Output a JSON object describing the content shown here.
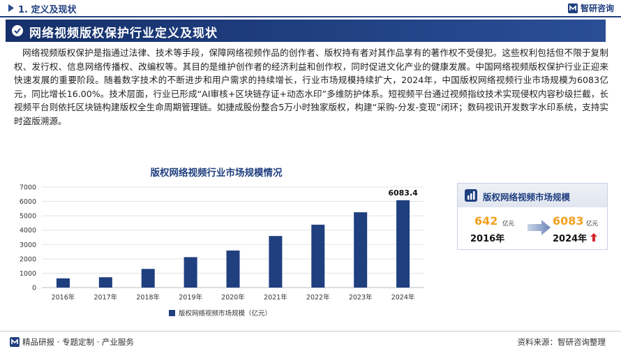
{
  "header": {
    "section_title": "1. 定义及现状",
    "brand": "智研咨询"
  },
  "banner": {
    "title": "网络视频版权保护行业定义及现状"
  },
  "body_text": "网络视频版权保护是指通过法律、技术等手段，保障网络视频作品的创作者、版权持有者对其作品享有的著作权不受侵犯。这些权利包括但不限于复制权、发行权、信息网络传播权、改编权等。其目的是维护创作者的经济利益和创作权，同时促进文化产业的健康发展。中国网络视频版权保护行业正迎来快速发展的重要阶段。随着数字技术的不断进步和用户需求的持续增长，行业市场规模持续扩大，2024年，中国版权网络视频行业市场规模为6083亿元，同比增长16.00%。技术层面，行业已形成“AI审核+区块链存证+动态水印”多维防护体系。短视频平台通过视频指纹技术实现侵权内容秒级拦截，长视频平台则依托区块链构建版权全生命周期管理链。如捷成股份整合5万小时独家版权，构建“采购-分发-变现”闭环；数码视讯开发数字水印系统，支持实时盗版溯源。",
  "chart_data": {
    "type": "bar",
    "title": "版权网络视频行业市场规模情况",
    "categories": [
      "2016年",
      "2017年",
      "2018年",
      "2019年",
      "2020年",
      "2021年",
      "2022年",
      "2023年",
      "2024年"
    ],
    "series": [
      {
        "name": "版权网络视频市场规模（亿元）",
        "values": [
          642,
          720,
          1300,
          2120,
          2580,
          3590,
          4380,
          5244,
          6083.4
        ],
        "color": "#1f3f7f"
      }
    ],
    "data_labels": [
      {
        "category": "2024年",
        "value": "6083.4"
      }
    ],
    "yticks": [
      0,
      1000,
      2000,
      3000,
      4000,
      5000,
      6000,
      7000
    ],
    "ylim": [
      0,
      7000
    ],
    "grid": true,
    "legend_position": "bottom",
    "xlabel": "",
    "ylabel": ""
  },
  "panel": {
    "title": "版权网络视频市场规模",
    "left_value": "642",
    "left_unit": "亿元",
    "left_year": "2016年",
    "right_value": "6083",
    "right_unit": "亿元",
    "right_year": "2024年"
  },
  "footer": {
    "left_text": "精品研报 · 专题定制 · 产业服务",
    "right_text": "资料来源：智研咨询整理"
  },
  "colors": {
    "brand_navy": "#1f3f7f",
    "accent_orange": "#f0a020",
    "up_red": "#d4252c"
  }
}
